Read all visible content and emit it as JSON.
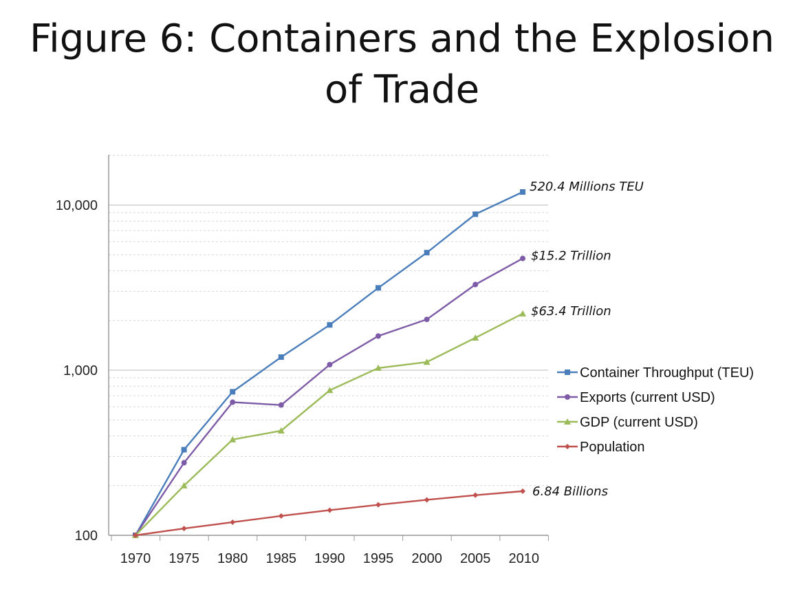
{
  "title": {
    "line1": "Figure 6: Containers and the Explosion",
    "line2": "of Trade"
  },
  "chart_data": {
    "type": "line",
    "yscale": "log",
    "ylim": [
      100,
      20000
    ],
    "y_ticks": [
      100,
      1000,
      10000
    ],
    "y_tick_labels": [
      "100",
      "1,000",
      "10,000"
    ],
    "categories": [
      "1970",
      "1975",
      "1980",
      "1985",
      "1990",
      "1995",
      "2000",
      "2005",
      "2010"
    ],
    "grid": true,
    "legend_position": "right",
    "series": [
      {
        "name": "Container Throughput (TEU)",
        "color": "#4a7ebb",
        "marker": "square",
        "x": [
          1970,
          1975,
          1980,
          1985,
          1990,
          1995,
          2000,
          2005,
          2011
        ],
        "values": [
          100,
          330,
          740,
          1200,
          1880,
          3150,
          5150,
          8800,
          12000
        ],
        "annotation": "520.4 Millions TEU"
      },
      {
        "name": "Exports (current USD)",
        "color": "#7d5ba6",
        "marker": "circle",
        "x": [
          1970,
          1975,
          1980,
          1985,
          1990,
          1995,
          2000,
          2005,
          2011
        ],
        "values": [
          100,
          275,
          640,
          615,
          1080,
          1610,
          2030,
          3300,
          4750
        ],
        "annotation": "$15.2 Trillion"
      },
      {
        "name": "GDP (current USD)",
        "color": "#9bbb59",
        "marker": "triangle",
        "x": [
          1970,
          1975,
          1980,
          1985,
          1990,
          1995,
          2000,
          2005,
          2011
        ],
        "values": [
          100,
          200,
          380,
          430,
          755,
          1030,
          1120,
          1570,
          2200
        ],
        "annotation": "$63.4 Trillion"
      },
      {
        "name": "Population",
        "color": "#c0504d",
        "marker": "diamond",
        "x": [
          1970,
          1975,
          1980,
          1985,
          1990,
          1995,
          2000,
          2005,
          2011
        ],
        "values": [
          100,
          110,
          120,
          131,
          142,
          153,
          164,
          175,
          185
        ],
        "annotation": "6.84 Billions"
      }
    ]
  }
}
